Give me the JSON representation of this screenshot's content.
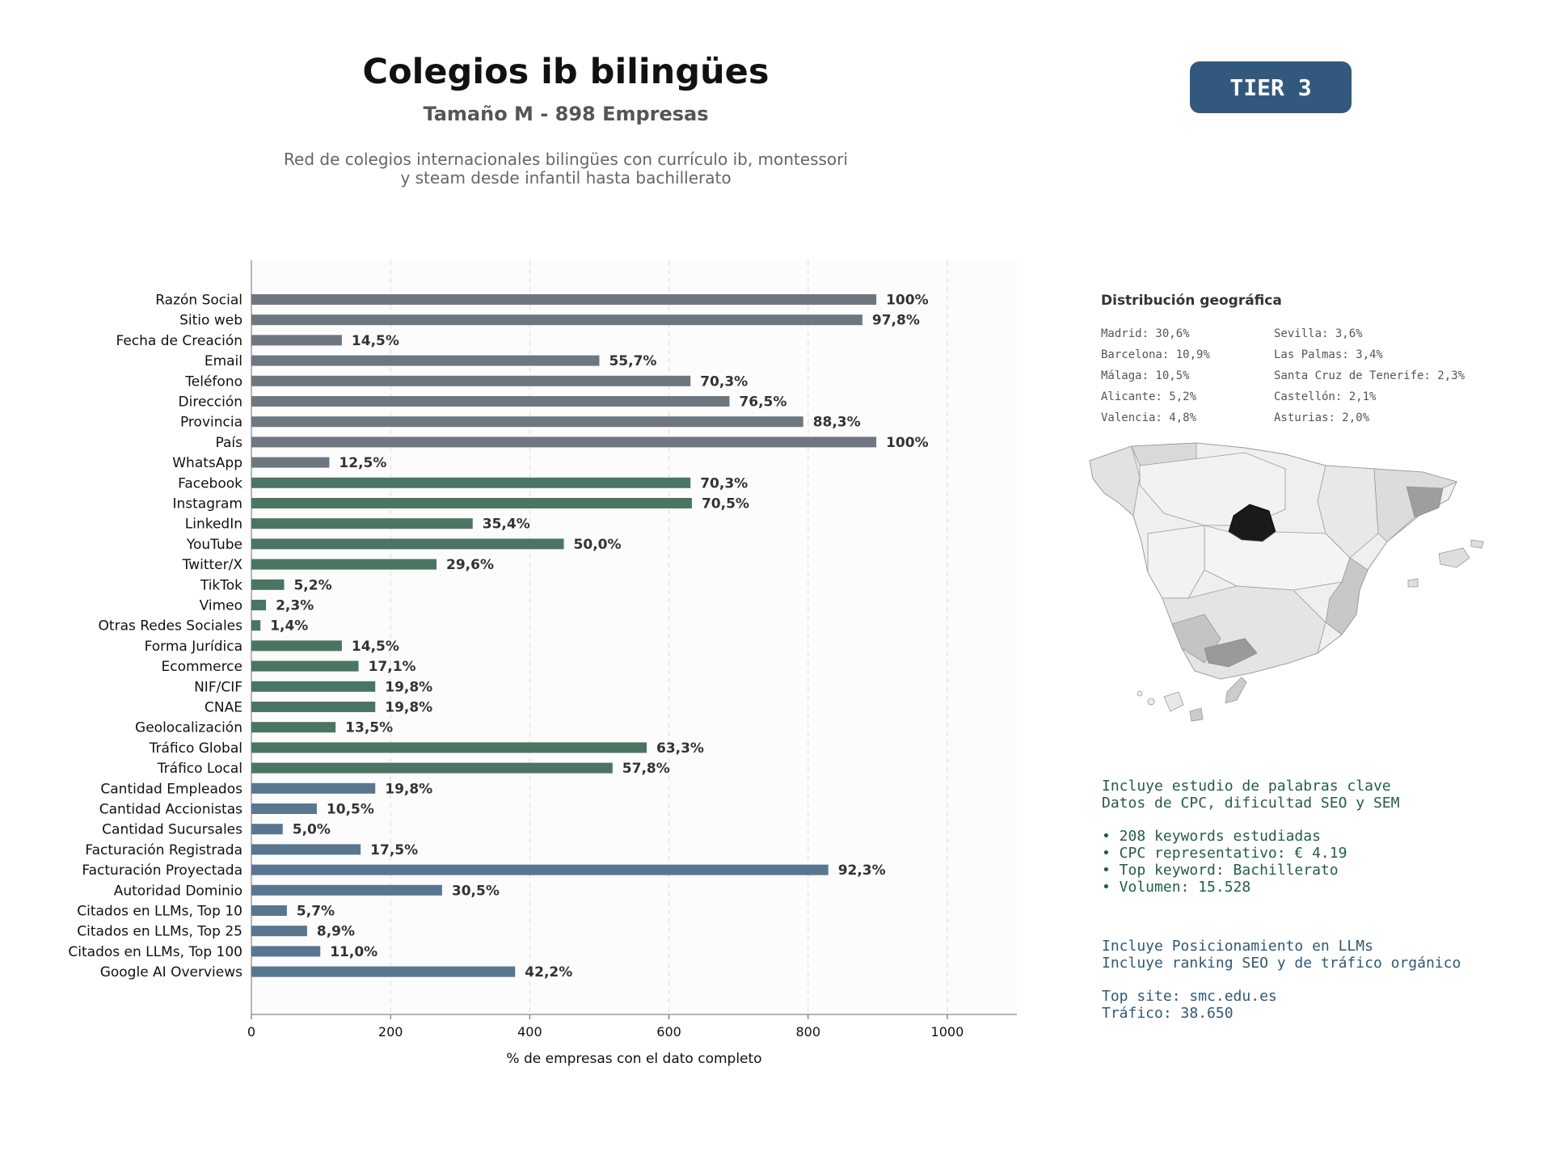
{
  "header": {
    "title": "Colegios ib bilingües",
    "subtitle": "Tamaño M - 898 Empresas",
    "description_line1": "Red de colegios internacionales bilingües con currículo ib, montessori",
    "description_line2": "y steam desde infantil hasta bachillerato",
    "tier_badge": "TIER 3"
  },
  "chart_data": {
    "type": "bar",
    "orientation": "horizontal",
    "xlabel": "% de empresas con el dato completo",
    "xlim": [
      0,
      1100
    ],
    "xticks": [
      0,
      200,
      400,
      600,
      800,
      1000
    ],
    "grid": "vertical dashed",
    "categories": [
      "Razón Social",
      "Sitio web",
      "Fecha de Creación",
      "Email",
      "Teléfono",
      "Dirección",
      "Provincia",
      "País",
      "WhatsApp",
      "Facebook",
      "Instagram",
      "LinkedIn",
      "YouTube",
      "Twitter/X",
      "TikTok",
      "Vimeo",
      "Otras Redes Sociales",
      "Forma Jurídica",
      "Ecommerce",
      "NIF/CIF",
      "CNAE",
      "Geolocalización",
      "Tráfico Global",
      "Tráfico Local",
      "Cantidad Empleados",
      "Cantidad Accionistas",
      "Cantidad Sucursales",
      "Facturación Registrada",
      "Facturación Proyectada",
      "Autoridad Dominio",
      "Citados en LLMs, Top 10",
      "Citados en LLMs, Top 25",
      "Citados en LLMs, Top 100",
      "Google AI Overviews"
    ],
    "values": [
      898,
      878,
      130,
      500,
      631,
      687,
      793,
      898,
      112,
      631,
      633,
      318,
      449,
      266,
      47,
      21,
      13,
      130,
      154,
      178,
      178,
      121,
      568,
      519,
      178,
      94,
      45,
      157,
      829,
      274,
      51,
      80,
      99,
      379
    ],
    "labels": [
      "100%",
      "97,8%",
      "14,5%",
      "55,7%",
      "70,3%",
      "76,5%",
      "88,3%",
      "100%",
      "12,5%",
      "70,3%",
      "70,5%",
      "35,4%",
      "50,0%",
      "29,6%",
      "5,2%",
      "2,3%",
      "1,4%",
      "14,5%",
      "17,1%",
      "19,8%",
      "19,8%",
      "13,5%",
      "63,3%",
      "57,8%",
      "19,8%",
      "10,5%",
      "5,0%",
      "17,5%",
      "92,3%",
      "30,5%",
      "5,7%",
      "8,9%",
      "11,0%",
      "42,2%"
    ],
    "groups": [
      0,
      0,
      0,
      0,
      0,
      0,
      0,
      0,
      0,
      1,
      1,
      1,
      1,
      1,
      1,
      1,
      1,
      1,
      1,
      1,
      1,
      1,
      1,
      1,
      2,
      2,
      2,
      2,
      2,
      2,
      2,
      2,
      2,
      2
    ],
    "group_colors": [
      "#6e7780",
      "#4a7562",
      "#58768f"
    ]
  },
  "geo": {
    "title": "Distribución geográfica",
    "items": [
      "Madrid: 30,6%",
      "Sevilla: 3,6%",
      "Barcelona: 10,9%",
      "Las Palmas: 3,4%",
      "Málaga: 10,5%",
      "Santa Cruz de Tenerife: 2,3%",
      "Alicante: 5,2%",
      "Castellón: 2,1%",
      "Valencia: 4,8%",
      "Asturias: 2,0%"
    ]
  },
  "keywords": {
    "line1": "Incluye estudio de palabras clave",
    "line2": "Datos de CPC, dificultad SEO y SEM",
    "bullet1": "• 208 keywords estudiadas",
    "bullet2": "• CPC representativo: € 4.19",
    "bullet3": "• Top keyword: Bachillerato",
    "bullet4": "• Volumen: 15.528"
  },
  "llm": {
    "line1": "Incluye Posicionamiento en LLMs",
    "line2": "Incluye ranking SEO y de tráfico orgánico",
    "line3": "Top site: smc.edu.es",
    "line4": "Tráfico: 38.650"
  }
}
